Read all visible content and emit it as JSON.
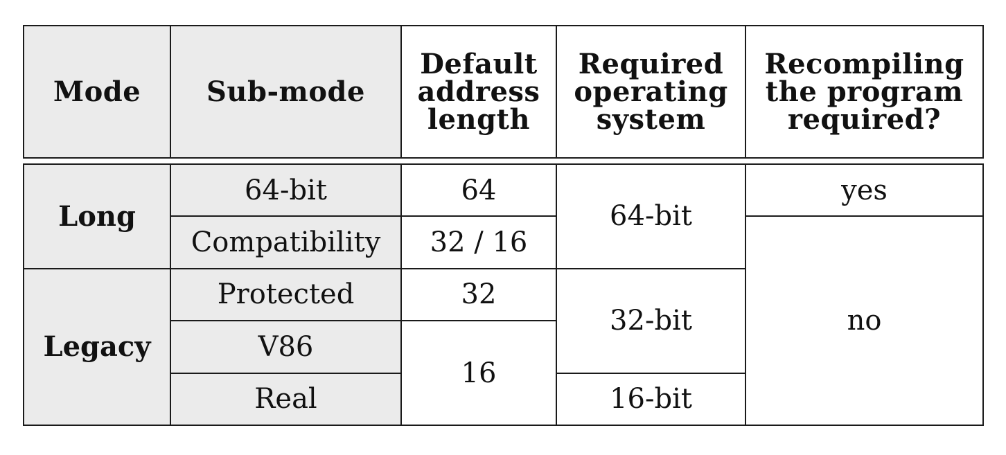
{
  "headers": {
    "mode": "Mode",
    "submode": "Sub-mode",
    "address_length": [
      "Default",
      "address",
      "length"
    ],
    "operating_system": [
      "Required",
      "operating",
      "system"
    ],
    "recompiling": [
      "Recompiling",
      "the program",
      "required?"
    ]
  },
  "modes": {
    "long": "Long",
    "legacy": "Legacy"
  },
  "rows": [
    {
      "submode": "64-bit",
      "address": "64"
    },
    {
      "submode": "Compatibility",
      "address": "32 / 16"
    },
    {
      "submode": "Protected",
      "address": "32"
    },
    {
      "submode": "V86",
      "address": "16"
    },
    {
      "submode": "Real"
    }
  ],
  "os": {
    "long": "64-bit",
    "legacy_32": "32-bit",
    "real": "16-bit"
  },
  "recompile": {
    "yes": "yes",
    "no": "no"
  },
  "colors": {
    "shade": "#ebebeb",
    "border": "#1a1a1a"
  }
}
